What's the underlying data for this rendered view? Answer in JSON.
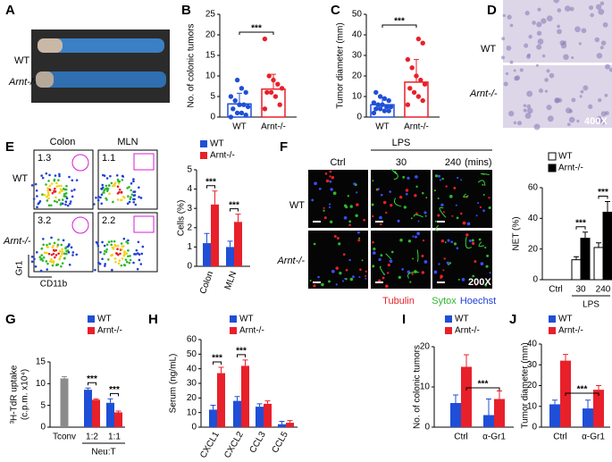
{
  "figure": {
    "panel_letters": [
      "A",
      "B",
      "C",
      "D",
      "E",
      "F",
      "G",
      "H",
      "I",
      "J"
    ],
    "a": {
      "rows": [
        "WT",
        "Arnt-/-"
      ]
    },
    "d": {
      "rows": [
        "WT",
        "Arnt-/-"
      ],
      "magnification": "400X"
    },
    "e": {
      "columns": [
        "Colon",
        "MLN"
      ],
      "rows": [
        "WT",
        "Arnt-/-"
      ],
      "gates": [
        1.3,
        1.1,
        3.2,
        2.2
      ],
      "y_marker": "Gr1",
      "x_marker": "CD11b"
    },
    "f": {
      "columns": [
        "Ctrl",
        "30",
        "240"
      ],
      "time_unit": "(mins)",
      "treatment": "LPS",
      "rows": [
        "WT",
        "Arnt-/-"
      ],
      "magnification": "200X",
      "stains": [
        "Tubulin",
        "Sytox",
        "Hoechst"
      ]
    }
  },
  "chart_data": [
    {
      "type": "dotbar",
      "ylabel": "No. of colonic tumors",
      "categories": [
        "WT",
        "Arnt-/-"
      ],
      "values": [
        3.2,
        6.8
      ],
      "errors": [
        2.6,
        3.6
      ],
      "points": [
        [
          0,
          0.5,
          1,
          1,
          2,
          2.5,
          3,
          3,
          4,
          5,
          6,
          7,
          9
        ],
        [
          2,
          3,
          5,
          6,
          6,
          7,
          8,
          9,
          10,
          19
        ]
      ],
      "colors": [
        "#1f4fd6",
        "#e8202a"
      ],
      "ylim": [
        0,
        25
      ],
      "yticks": [
        0,
        5,
        10,
        15,
        20,
        25
      ],
      "annotations": [
        "***"
      ]
    },
    {
      "type": "dotbar",
      "ylabel": "Tumor diameter (mm)",
      "categories": [
        "WT",
        "Arnt-/-"
      ],
      "values": [
        6,
        17
      ],
      "errors": [
        3.5,
        11
      ],
      "points": [
        [
          2,
          3,
          3,
          4,
          4,
          5,
          5,
          6,
          6,
          7,
          8,
          9,
          10,
          12
        ],
        [
          6,
          8,
          10,
          12,
          14,
          16,
          18,
          20,
          24,
          28,
          36,
          38
        ]
      ],
      "colors": [
        "#1f4fd6",
        "#e8202a"
      ],
      "ylim": [
        0,
        50
      ],
      "yticks": [
        0,
        10,
        20,
        30,
        40,
        50
      ],
      "annotations": [
        "***"
      ]
    },
    {
      "type": "bar",
      "ylabel": "Cells (%)",
      "categories": [
        "Colon",
        "MLN"
      ],
      "series": [
        {
          "name": "WT",
          "color": "#1f4fd6",
          "values": [
            1.2,
            1.0
          ],
          "errors": [
            0.5,
            0.3
          ]
        },
        {
          "name": "Arnt-/-",
          "color": "#e8202a",
          "values": [
            3.2,
            2.3
          ],
          "errors": [
            0.7,
            0.4
          ]
        }
      ],
      "ylim": [
        0,
        5
      ],
      "yticks": [
        0,
        1,
        2,
        3,
        4,
        5
      ],
      "annotations": [
        "***",
        "***"
      ]
    },
    {
      "type": "bar",
      "ylabel": "NET (%)",
      "categories": [
        "Ctrl",
        "30",
        "240"
      ],
      "group_label": "LPS",
      "edgecolor": "#000000",
      "series": [
        {
          "name": "WT",
          "color": "#ffffff",
          "values": [
            0,
            13,
            21
          ],
          "errors": [
            0,
            2,
            3
          ]
        },
        {
          "name": "Arnt-/-",
          "color": "#000000",
          "values": [
            0,
            27,
            44
          ],
          "errors": [
            0,
            4,
            7
          ]
        }
      ],
      "ylim": [
        0,
        60
      ],
      "yticks": [
        0,
        20,
        40,
        60
      ],
      "annotations": [
        "***",
        "***"
      ]
    },
    {
      "type": "bar",
      "ylabel": [
        "³H-TdR uptake",
        "(c.p.m. x10⁴)"
      ],
      "categories": [
        "Tconv",
        "1:2",
        "1:1"
      ],
      "group_label": "Neu:T",
      "control": {
        "value": 11.2,
        "error": 0.4,
        "color": "#8c8c8c"
      },
      "series": [
        {
          "name": "WT",
          "color": "#1f4fd6",
          "values": [
            null,
            8.6,
            5.6
          ],
          "errors": [
            null,
            0.4,
            0.9
          ]
        },
        {
          "name": "Arnt-/-",
          "color": "#e8202a",
          "values": [
            null,
            6.3,
            3.4
          ],
          "errors": [
            null,
            0.2,
            0.3
          ]
        }
      ],
      "ylim": [
        0,
        15
      ],
      "yticks": [
        0,
        5,
        10,
        15
      ],
      "annotations": [
        "***",
        "***"
      ]
    },
    {
      "type": "bar",
      "ylabel": "Serum (ng/mL)",
      "categories": [
        "CXCL1",
        "CXCL2",
        "CCL3",
        "CCL5"
      ],
      "series": [
        {
          "name": "WT",
          "color": "#1f4fd6",
          "values": [
            12,
            18,
            14,
            2
          ],
          "errors": [
            3,
            3,
            2,
            2
          ]
        },
        {
          "name": "Arnt-/-",
          "color": "#e8202a",
          "values": [
            37,
            42,
            16,
            3
          ],
          "errors": [
            4,
            4,
            2,
            1.5
          ]
        }
      ],
      "ylim": [
        0,
        60
      ],
      "yticks": [
        0,
        10,
        20,
        30,
        40,
        50,
        60
      ],
      "annotations": [
        "***",
        "***"
      ]
    },
    {
      "type": "bar",
      "ylabel": "No. of colonic tumors",
      "categories": [
        "Ctrl",
        "α-Gr1"
      ],
      "series": [
        {
          "name": "WT",
          "color": "#1f4fd6",
          "values": [
            6,
            3
          ],
          "errors": [
            2,
            4
          ]
        },
        {
          "name": "Arnt-/-",
          "color": "#e8202a",
          "values": [
            15,
            7
          ],
          "errors": [
            3,
            2
          ]
        }
      ],
      "ylim": [
        0,
        20
      ],
      "yticks": [
        0,
        10,
        20
      ],
      "annotations": [
        "***"
      ]
    },
    {
      "type": "bar",
      "ylabel": "Tumor diameter (mm)",
      "categories": [
        "Ctrl",
        "α-Gr1"
      ],
      "series": [
        {
          "name": "WT",
          "color": "#1f4fd6",
          "values": [
            11,
            9
          ],
          "errors": [
            2,
            4
          ]
        },
        {
          "name": "Arnt-/-",
          "color": "#e8202a",
          "values": [
            32,
            18
          ],
          "errors": [
            3,
            2
          ]
        }
      ],
      "ylim": [
        0,
        40
      ],
      "yticks": [
        0,
        10,
        20,
        30,
        40
      ],
      "annotations": [
        "***"
      ]
    }
  ]
}
